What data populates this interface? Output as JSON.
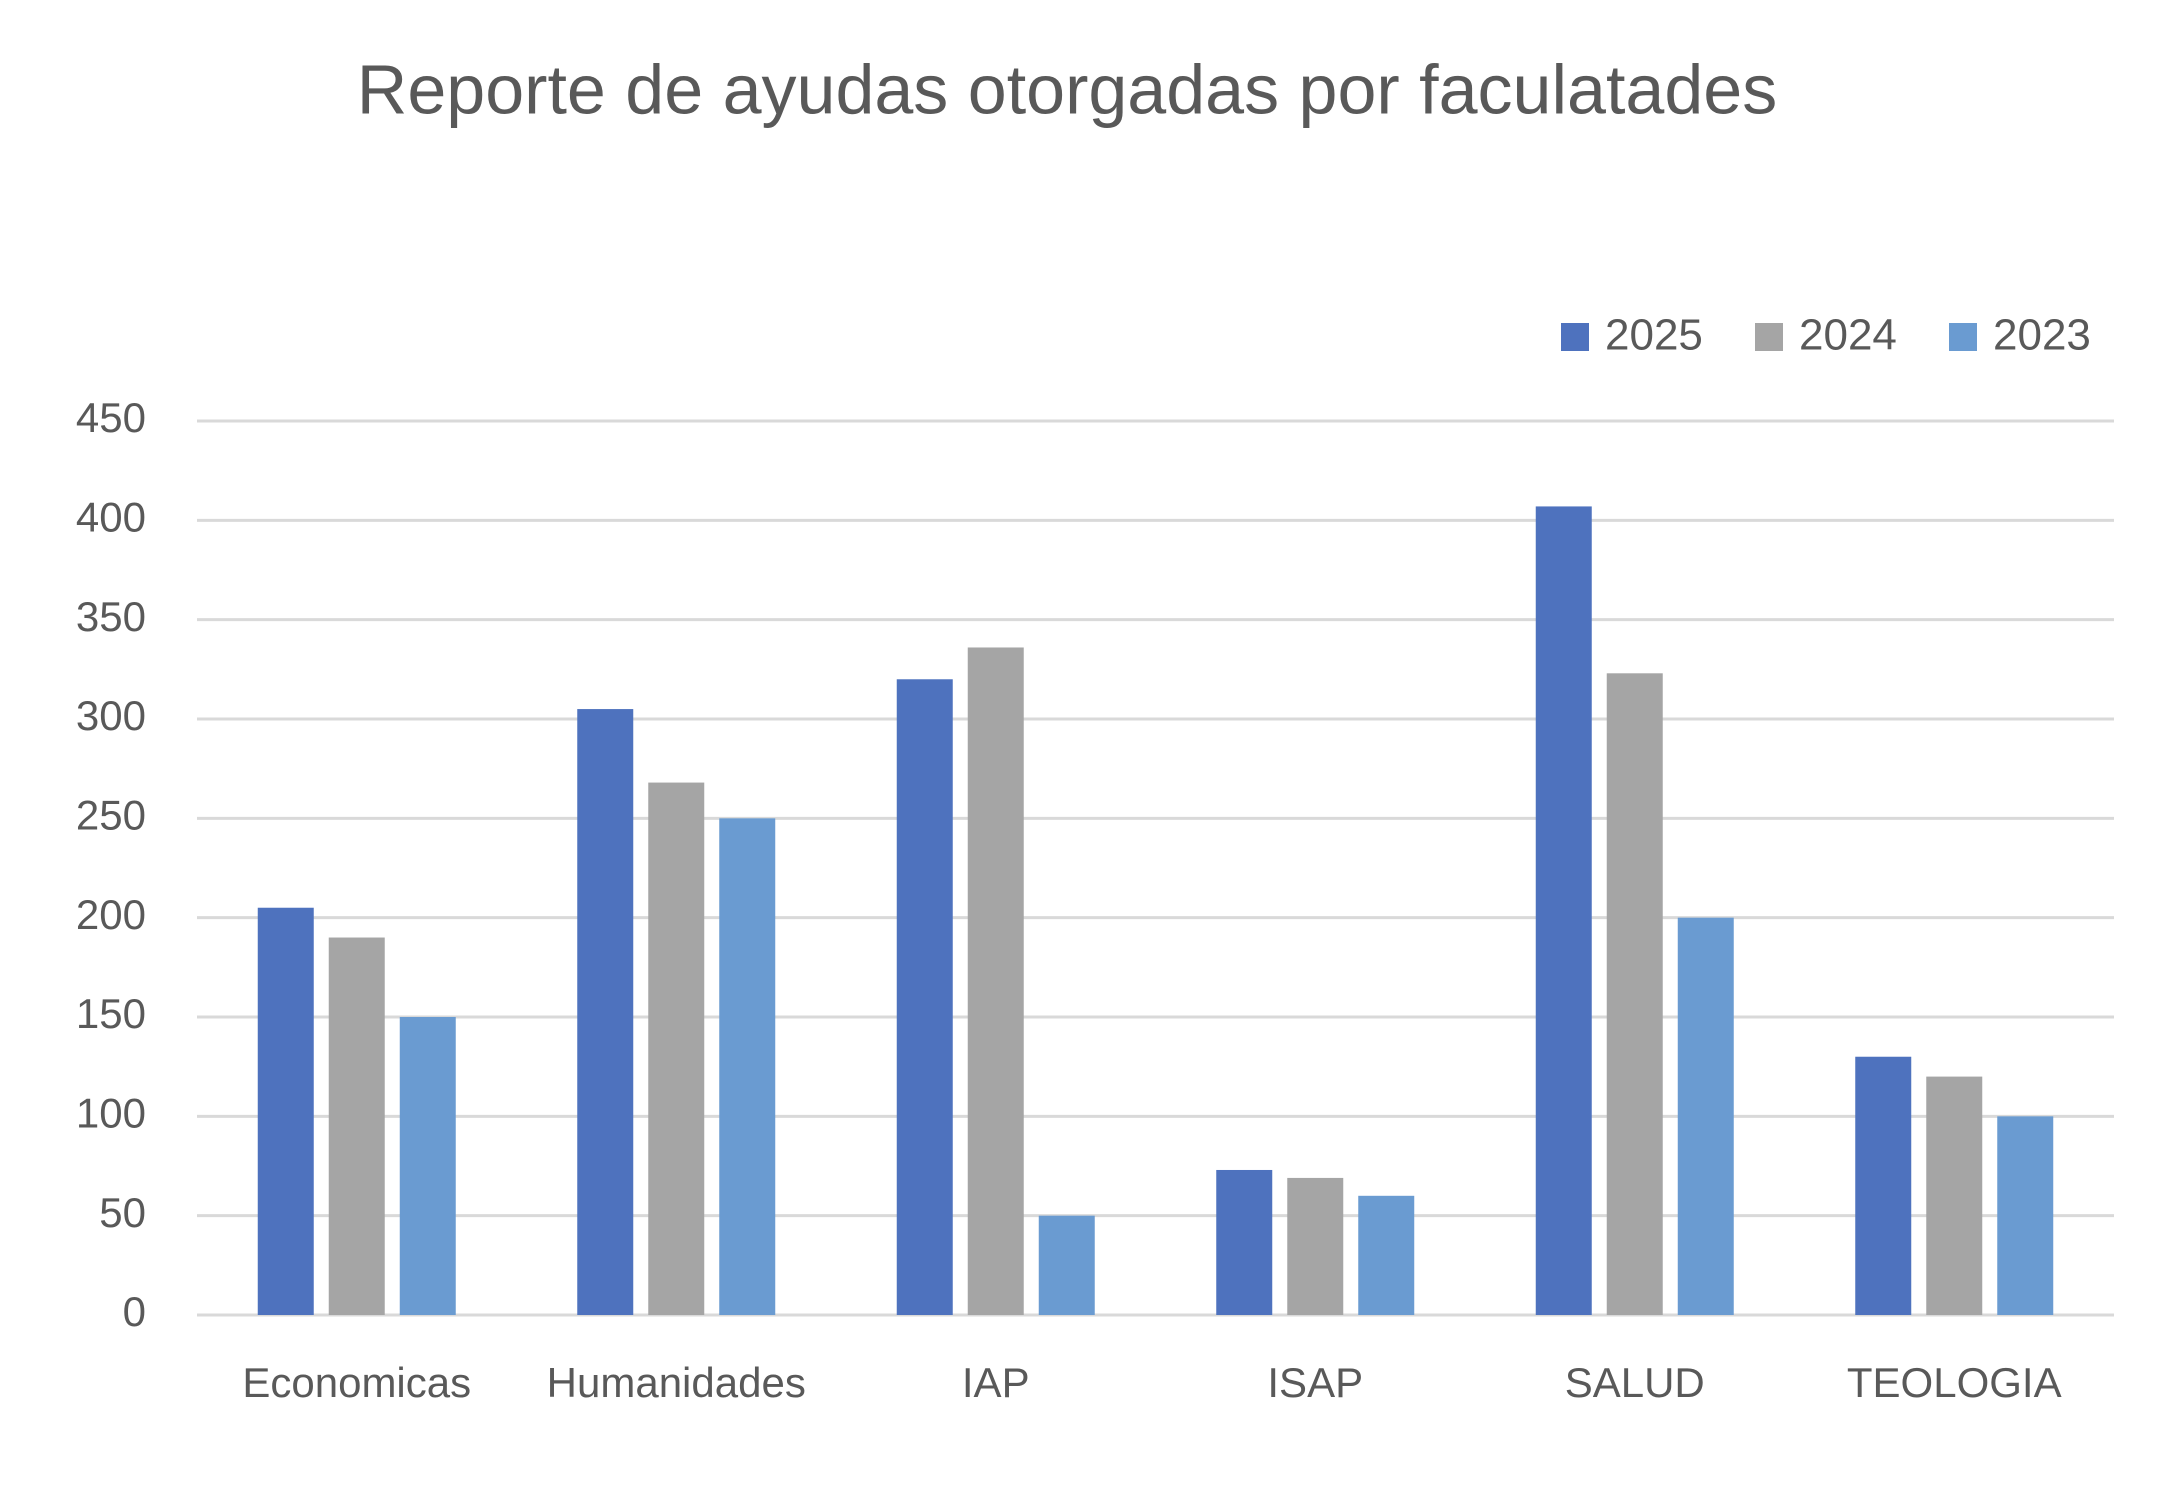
{
  "chart_data": {
    "type": "bar",
    "title": "Reporte de ayudas otorgadas por faculatades",
    "categories": [
      "Economicas",
      "Humanidades",
      "IAP",
      "ISAP",
      "SALUD",
      "TEOLOGIA"
    ],
    "series": [
      {
        "name": "2025",
        "color": "#4e72be",
        "values": [
          205,
          305,
          320,
          73,
          407,
          130
        ]
      },
      {
        "name": "2024",
        "color": "#a5a5a5",
        "values": [
          190,
          268,
          336,
          69,
          323,
          120
        ]
      },
      {
        "name": "2023",
        "color": "#6a9bd1",
        "values": [
          150,
          250,
          50,
          60,
          200,
          100
        ]
      }
    ],
    "ylim": [
      0,
      450
    ],
    "yticks": [
      0,
      50,
      100,
      150,
      200,
      250,
      300,
      350,
      400,
      450
    ],
    "grid": true,
    "legend": "top-right"
  }
}
